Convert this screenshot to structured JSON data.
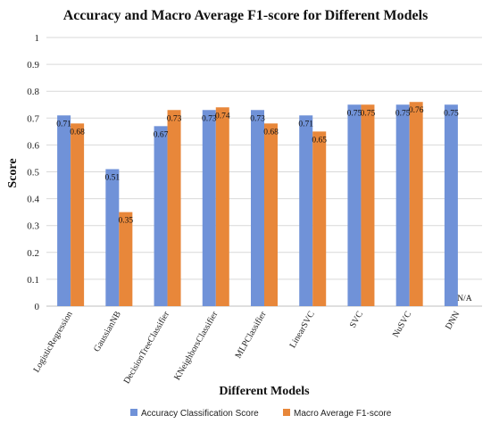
{
  "chart_data": {
    "type": "bar",
    "title": "Accuracy and Macro Average F1-score for Different Models",
    "xlabel": "Different Models",
    "ylabel": "Score",
    "ylim": [
      0,
      1
    ],
    "yticks": [
      "0",
      "0.1",
      "0.2",
      "0.3",
      "0.4",
      "0.5",
      "0.6",
      "0.7",
      "0.8",
      "0.9",
      "1"
    ],
    "grid": true,
    "legend_position": "bottom",
    "categories": [
      "LogisticRegression",
      "GaussianNB",
      "DecisionTreeClassifier",
      "KNeighborsClassifier",
      "MLPClassifier",
      "LinearSVC",
      "SVC",
      "NuSVC",
      "DNN"
    ],
    "series": [
      {
        "name": "Accuracy Classification Score",
        "color": "#7092d8",
        "values": [
          0.71,
          0.51,
          0.67,
          0.73,
          0.73,
          0.71,
          0.75,
          0.75,
          0.75
        ],
        "labels": [
          "0.71",
          "0.51",
          "0.67",
          "0.73",
          "0.73",
          "0.71",
          "0.75",
          "0.75",
          "0.75"
        ]
      },
      {
        "name": "Macro Average F1-score",
        "color": "#e8873a",
        "values": [
          0.68,
          0.35,
          0.73,
          0.74,
          0.68,
          0.65,
          0.75,
          0.76,
          null
        ],
        "labels": [
          "0.68",
          "0.35",
          "0.73",
          "0.74",
          "0.68",
          "0.65",
          "0.75",
          "0.76",
          "N/A"
        ]
      }
    ]
  }
}
